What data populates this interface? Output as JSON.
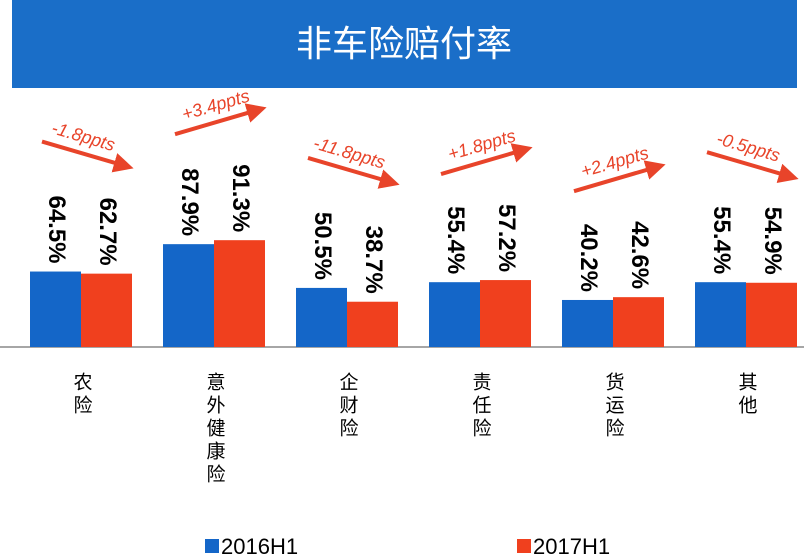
{
  "chart_data": {
    "type": "bar",
    "title": "非车险赔付率",
    "categories": [
      "农险",
      "意外健康险",
      "企财险",
      "责任险",
      "货运险",
      "其他"
    ],
    "series": [
      {
        "name": "2016H1",
        "color": "#1466c8",
        "values": [
          64.5,
          87.9,
          50.5,
          55.4,
          40.2,
          55.4
        ],
        "value_labels": [
          "64.5%",
          "87.9%",
          "50.5%",
          "55.4%",
          "40.2%",
          "55.4%"
        ]
      },
      {
        "name": "2017H1",
        "color": "#f0401e",
        "values": [
          62.7,
          91.3,
          38.7,
          57.2,
          42.6,
          54.9
        ],
        "value_labels": [
          "62.7%",
          "91.3%",
          "38.7%",
          "57.2%",
          "42.6%",
          "54.9%"
        ]
      }
    ],
    "annotations": [
      "-1.8ppts",
      "+3.4ppts",
      "-11.8ppts",
      "+1.8ppts",
      "+2.4ppts",
      "-0.5ppts"
    ],
    "ylim": [
      0,
      100
    ],
    "legend": "bottom"
  }
}
